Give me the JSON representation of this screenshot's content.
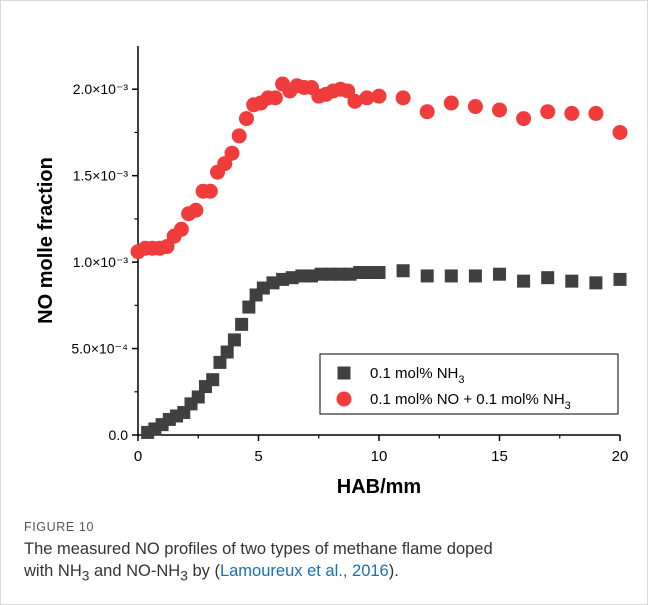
{
  "chart_data": {
    "type": "scatter",
    "xlabel": "HAB/mm",
    "ylabel": "NO molle fraction",
    "xlim": [
      0,
      20
    ],
    "ylim": [
      0,
      0.00225
    ],
    "x_ticks": [
      "0",
      "5",
      "10",
      "15",
      "20"
    ],
    "y_ticks": [
      "0.0",
      "5.0×10⁻⁴",
      "1.0×10⁻³",
      "1.5×10⁻³",
      "2.0×10⁻³"
    ],
    "legend_position": "bottom-right",
    "series": [
      {
        "name": "0.1 mol% NH3",
        "legend_main": "0.1 mol% NH",
        "legend_sub": "3",
        "marker": "square",
        "color": "#404040",
        "x": [
          0.4,
          0.7,
          1.0,
          1.3,
          1.6,
          1.9,
          2.2,
          2.5,
          2.8,
          3.1,
          3.4,
          3.7,
          4.0,
          4.3,
          4.6,
          4.9,
          5.2,
          5.6,
          6.0,
          6.4,
          6.8,
          7.2,
          7.6,
          8.0,
          8.4,
          8.8,
          9.2,
          9.6,
          10.0,
          11.0,
          12.0,
          13.0,
          14.0,
          15.0,
          16.0,
          17.0,
          18.0,
          19.0,
          20.0
        ],
        "y": [
          1.5e-05,
          3.5e-05,
          6e-05,
          9e-05,
          0.00011,
          0.00013,
          0.00018,
          0.00022,
          0.00028,
          0.00032,
          0.00042,
          0.00048,
          0.00055,
          0.00064,
          0.00074,
          0.00081,
          0.00085,
          0.00088,
          0.0009,
          0.00091,
          0.00092,
          0.00092,
          0.00093,
          0.00093,
          0.00093,
          0.00093,
          0.00094,
          0.00094,
          0.00094,
          0.00095,
          0.00092,
          0.00092,
          0.00092,
          0.00093,
          0.00089,
          0.00091,
          0.00089,
          0.00088,
          0.0009
        ]
      },
      {
        "name": "0.1 mol% NO + 0.1 mol% NH3",
        "legend_main": "0.1 mol% NO + 0.1 mol% NH",
        "legend_sub": "3",
        "marker": "circle",
        "color": "#f03c3c",
        "x": [
          0.0,
          0.3,
          0.6,
          0.9,
          1.2,
          1.5,
          1.8,
          2.1,
          2.4,
          2.7,
          3.0,
          3.3,
          3.6,
          3.9,
          4.2,
          4.5,
          4.8,
          5.1,
          5.4,
          5.7,
          6.0,
          6.3,
          6.6,
          6.9,
          7.2,
          7.5,
          7.8,
          8.1,
          8.4,
          8.7,
          9.0,
          9.5,
          10.0,
          11.0,
          12.0,
          13.0,
          14.0,
          15.0,
          16.0,
          17.0,
          18.0,
          19.0,
          20.0
        ],
        "y": [
          0.00106,
          0.00108,
          0.00108,
          0.00108,
          0.00109,
          0.00115,
          0.00119,
          0.00128,
          0.0013,
          0.00141,
          0.00141,
          0.00152,
          0.00157,
          0.00163,
          0.00173,
          0.00183,
          0.00191,
          0.00192,
          0.00195,
          0.00195,
          0.00203,
          0.00199,
          0.00202,
          0.00201,
          0.00201,
          0.00196,
          0.00197,
          0.00199,
          0.002,
          0.00199,
          0.00193,
          0.00195,
          0.00196,
          0.00195,
          0.00187,
          0.00192,
          0.0019,
          0.00188,
          0.00183,
          0.00187,
          0.00186,
          0.00186,
          0.00175
        ]
      }
    ]
  },
  "caption": {
    "label": "FIGURE 10",
    "line1": "The measured NO profiles of two types of methane flame doped",
    "line2_a": "with NH",
    "line2_sub1": "3",
    "line2_b": " and NO-NH",
    "line2_sub2": "3",
    "line2_c": " by (",
    "citation": "Lamoureux et al., 2016",
    "line2_d": ")."
  }
}
